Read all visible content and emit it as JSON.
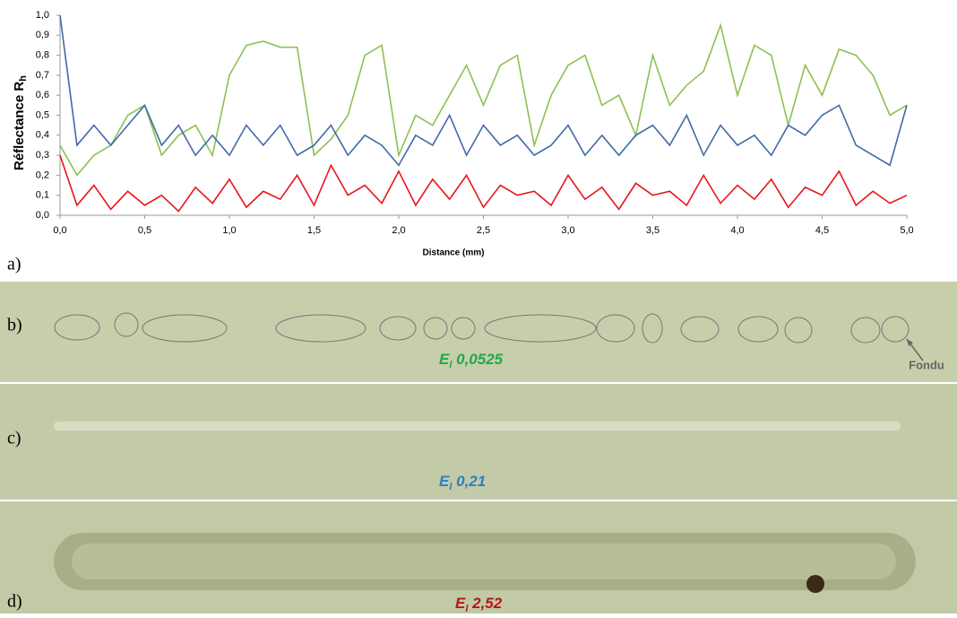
{
  "chart_data": {
    "type": "line",
    "xlabel": "Distance (mm)",
    "ylabel": "Réflectance R",
    "ylabel_subscript": "h",
    "x": [
      0,
      0.1,
      0.2,
      0.3,
      0.4,
      0.5,
      0.6,
      0.7,
      0.8,
      0.9,
      1,
      1.1,
      1.2,
      1.3,
      1.4,
      1.5,
      1.6,
      1.7,
      1.8,
      1.9,
      2,
      2.1,
      2.2,
      2.3,
      2.4,
      2.5,
      2.6,
      2.7,
      2.8,
      2.9,
      3,
      3.1,
      3.2,
      3.3,
      3.4,
      3.5,
      3.6,
      3.7,
      3.8,
      3.9,
      4,
      4.1,
      4.2,
      4.3,
      4.4,
      4.5,
      4.6,
      4.7,
      4.8,
      4.9,
      5
    ],
    "series": [
      {
        "color": "#8cc152",
        "values": [
          0.35,
          0.2,
          0.3,
          0.35,
          0.5,
          0.55,
          0.3,
          0.4,
          0.45,
          0.3,
          0.7,
          0.85,
          0.87,
          0.84,
          0.84,
          0.3,
          0.38,
          0.5,
          0.8,
          0.85,
          0.3,
          0.5,
          0.45,
          0.6,
          0.75,
          0.55,
          0.75,
          0.8,
          0.35,
          0.6,
          0.75,
          0.8,
          0.55,
          0.6,
          0.4,
          0.8,
          0.55,
          0.65,
          0.72,
          0.95,
          0.6,
          0.85,
          0.8,
          0.45,
          0.75,
          0.6,
          0.83,
          0.8,
          0.7,
          0.5,
          0.55
        ]
      },
      {
        "color": "#3f6aa8",
        "values": [
          1.0,
          0.35,
          0.45,
          0.35,
          0.45,
          0.55,
          0.35,
          0.45,
          0.3,
          0.4,
          0.3,
          0.45,
          0.35,
          0.45,
          0.3,
          0.35,
          0.45,
          0.3,
          0.4,
          0.35,
          0.25,
          0.4,
          0.35,
          0.5,
          0.3,
          0.45,
          0.35,
          0.4,
          0.3,
          0.35,
          0.45,
          0.3,
          0.4,
          0.3,
          0.4,
          0.45,
          0.35,
          0.5,
          0.3,
          0.45,
          0.35,
          0.4,
          0.3,
          0.45,
          0.4,
          0.5,
          0.55,
          0.35,
          0.3,
          0.25,
          0.55
        ]
      },
      {
        "color": "#e8141b",
        "values": [
          0.3,
          0.05,
          0.15,
          0.03,
          0.12,
          0.05,
          0.1,
          0.02,
          0.14,
          0.06,
          0.18,
          0.04,
          0.12,
          0.08,
          0.2,
          0.05,
          0.25,
          0.1,
          0.15,
          0.06,
          0.22,
          0.05,
          0.18,
          0.08,
          0.2,
          0.04,
          0.15,
          0.1,
          0.12,
          0.05,
          0.2,
          0.08,
          0.14,
          0.03,
          0.16,
          0.1,
          0.12,
          0.05,
          0.2,
          0.06,
          0.15,
          0.08,
          0.18,
          0.04,
          0.14,
          0.1,
          0.22,
          0.05,
          0.12,
          0.06,
          0.1
        ]
      }
    ],
    "xlim": [
      0,
      5
    ],
    "ylim": [
      0,
      1
    ],
    "xticks": [
      {
        "value": 0,
        "label": "0,0"
      },
      {
        "value": 0.5,
        "label": "0,5"
      },
      {
        "value": 1,
        "label": "1,0"
      },
      {
        "value": 1.5,
        "label": "1,5"
      },
      {
        "value": 2,
        "label": "2,0"
      },
      {
        "value": 2.5,
        "label": "2,5"
      },
      {
        "value": 3,
        "label": "3,0"
      },
      {
        "value": 3.5,
        "label": "3,5"
      },
      {
        "value": 4,
        "label": "4,0"
      },
      {
        "value": 4.5,
        "label": "4,5"
      },
      {
        "value": 5,
        "label": "5,0"
      }
    ],
    "yticks": [
      {
        "value": 0,
        "label": "0,0"
      },
      {
        "value": 0.1,
        "label": "0,1"
      },
      {
        "value": 0.2,
        "label": "0,2"
      },
      {
        "value": 0.3,
        "label": "0,3"
      },
      {
        "value": 0.4,
        "label": "0,4"
      },
      {
        "value": 0.5,
        "label": "0,5"
      },
      {
        "value": 0.6,
        "label": "0,6"
      },
      {
        "value": 0.7,
        "label": "0,7"
      },
      {
        "value": 0.8,
        "label": "0,8"
      },
      {
        "value": 0.9,
        "label": "0,9"
      },
      {
        "value": 1,
        "label": "1,0"
      }
    ]
  },
  "panels": {
    "a": "a)",
    "b": "b)",
    "c": "c)",
    "d": "d)"
  },
  "annotations": {
    "b_sym": "E",
    "b_sub": "l",
    "b_val": " 0,0525",
    "c_sym": "E",
    "c_sub": "l",
    "c_val": " 0,21",
    "d_sym": "E",
    "d_sub": "l",
    "d_val": " 2,52",
    "fondu": "Fondu"
  }
}
